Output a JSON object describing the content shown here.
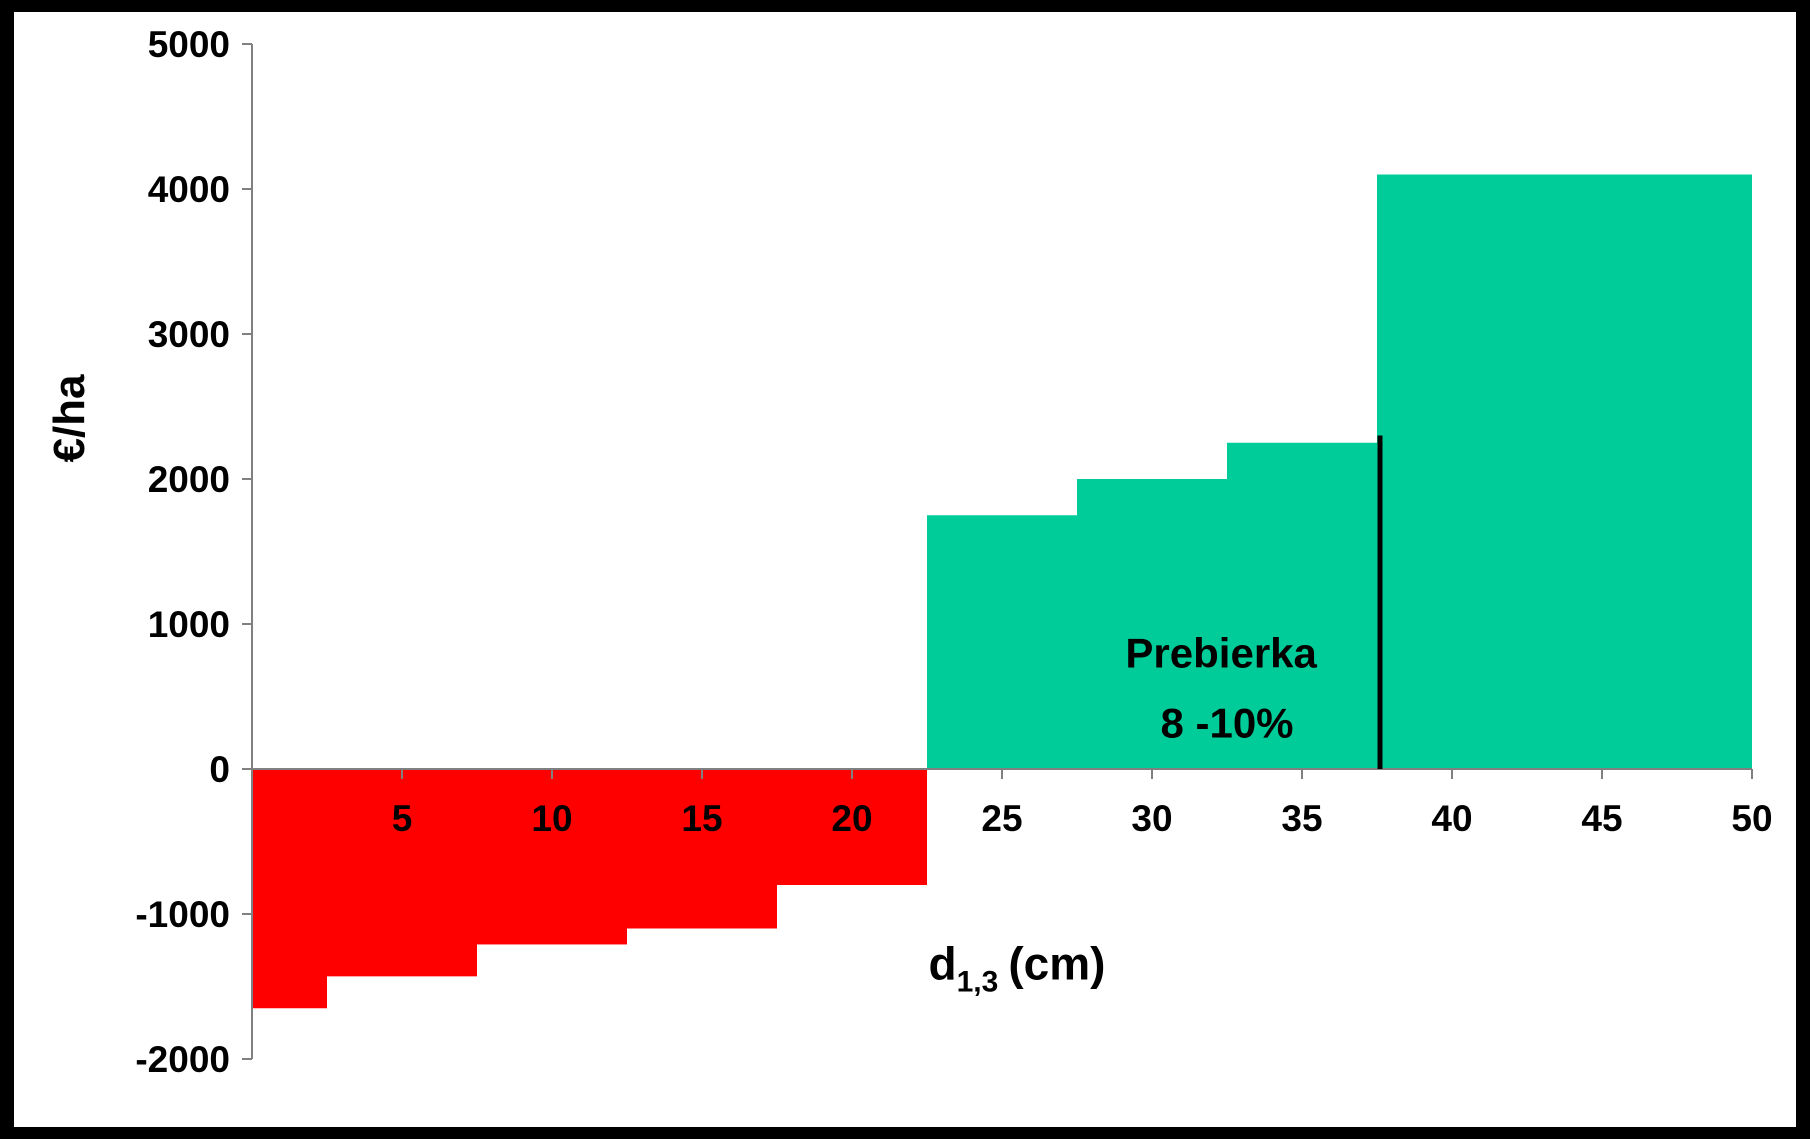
{
  "chart_data": {
    "type": "bar",
    "title": "",
    "xlabel": {
      "main": "d",
      "subscript": "1,3",
      "suffix": "(cm)"
    },
    "ylabel": "€/ha",
    "xlim": [
      0,
      50
    ],
    "ylim": [
      -2000,
      5000
    ],
    "x_ticks": [
      5,
      10,
      15,
      20,
      25,
      30,
      35,
      40,
      45,
      50
    ],
    "y_ticks": [
      -2000,
      -1000,
      0,
      1000,
      2000,
      3000,
      4000,
      5000
    ],
    "grid": false,
    "legend": "none",
    "annotation": {
      "lines": [
        "Prebierka",
        "8 -10%"
      ],
      "x": 32.5,
      "y": 700
    },
    "marker_line": {
      "x": 37.6,
      "y_from": 0,
      "y_to": 2300
    },
    "colors": {
      "negative": "#ff0000",
      "positive": "#00cc99",
      "axis": "#808080",
      "frame": "#000000"
    },
    "bars": [
      {
        "x0": 0,
        "x1": 2.5,
        "value": -1650
      },
      {
        "x0": 2.5,
        "x1": 7.5,
        "value": -1430
      },
      {
        "x0": 7.5,
        "x1": 12.5,
        "value": -1210
      },
      {
        "x0": 12.5,
        "x1": 17.5,
        "value": -1100
      },
      {
        "x0": 17.5,
        "x1": 22.5,
        "value": -800
      },
      {
        "x0": 22.5,
        "x1": 27.5,
        "value": 1750
      },
      {
        "x0": 27.5,
        "x1": 32.5,
        "value": 2000
      },
      {
        "x0": 32.5,
        "x1": 37.5,
        "value": 2250
      },
      {
        "x0": 37.5,
        "x1": 50,
        "value": 4100
      }
    ]
  }
}
